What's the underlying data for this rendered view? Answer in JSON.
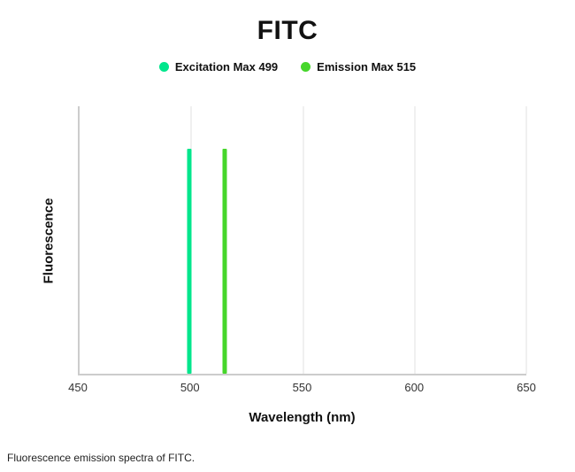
{
  "title": "FITC",
  "legend": [
    {
      "label": "Excitation Max 499",
      "color": "#00E68C"
    },
    {
      "label": "Emission Max 515",
      "color": "#46D62B"
    }
  ],
  "caption": "Fluorescence emission spectra of FITC.",
  "chart_data": {
    "type": "line",
    "title": "FITC",
    "xlabel": "Wavelength (nm)",
    "ylabel": "Fluorescence",
    "xlim": [
      450,
      650
    ],
    "x_ticks": [
      450,
      500,
      550,
      600,
      650
    ],
    "gridlines_x": [
      500,
      550,
      600,
      650
    ],
    "grid": true,
    "legend_position": "top",
    "axis_color": "#cccccc",
    "gridline_color": "#e2e2e2",
    "series": [
      {
        "name": "Excitation Max 499",
        "color": "#00E68C",
        "peak_x": 499,
        "peak_height_pct": 84
      },
      {
        "name": "Emission Max 515",
        "color": "#46D62B",
        "peak_x": 515,
        "peak_height_pct": 84
      }
    ]
  }
}
